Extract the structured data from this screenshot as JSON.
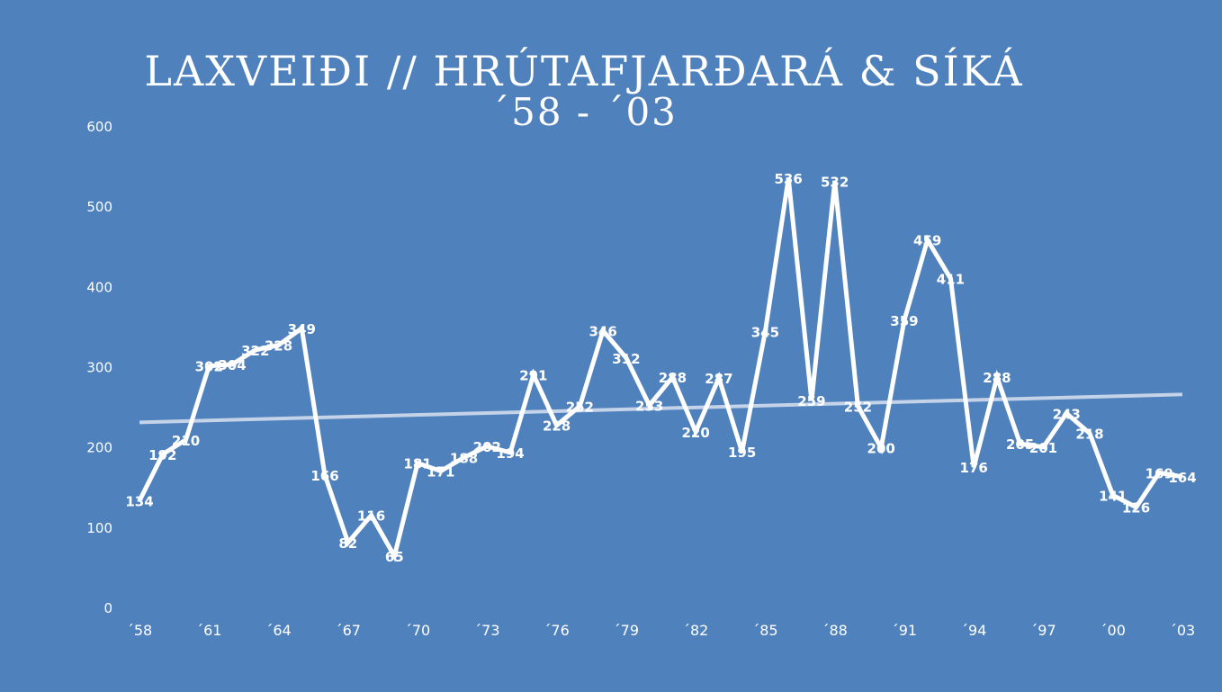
{
  "chart_data": {
    "type": "line",
    "title": "LAXVEIÐI // HRÚTAFJARÐARÁ & SÍKÁ",
    "subtitle": "´58 -  ´03",
    "xlabel": "",
    "ylabel": "",
    "ylim": [
      0,
      600
    ],
    "yticks": [
      0,
      100,
      200,
      300,
      400,
      500,
      600
    ],
    "grid": false,
    "legend": "none",
    "trendline": true,
    "categories": [
      "1958",
      "1959",
      "1960",
      "1961",
      "1962",
      "1963",
      "1964",
      "1965",
      "1966",
      "1967",
      "1968",
      "1969",
      "1970",
      "1971",
      "1972",
      "1973",
      "1974",
      "1975",
      "1976",
      "1977",
      "1978",
      "1979",
      "1980",
      "1981",
      "1982",
      "1983",
      "1984",
      "1985",
      "1986",
      "1987",
      "1988",
      "1989",
      "1990",
      "1991",
      "1992",
      "1993",
      "1994",
      "1995",
      "1996",
      "1997",
      "1998",
      "1999",
      "2000",
      "2001",
      "2002",
      "2003"
    ],
    "xtick_labels": [
      "´58",
      "´61",
      "´64",
      "´67",
      "´70",
      "´73",
      "´76",
      "´79",
      "´82",
      "´85",
      "´88",
      "´91",
      "´94",
      "´97",
      "´00",
      "´03"
    ],
    "series": [
      {
        "values": [
          134,
          192,
          210,
          302,
          304,
          322,
          328,
          349,
          166,
          82,
          116,
          65,
          181,
          171,
          188,
          202,
          194,
          291,
          228,
          252,
          346,
          312,
          253,
          288,
          220,
          287,
          195,
          345,
          536,
          259,
          532,
          252,
          200,
          359,
          459,
          411,
          176,
          288,
          205,
          201,
          243,
          218,
          141,
          126,
          169,
          164
        ]
      }
    ],
    "colors": {
      "background": "#4f81bd",
      "line": "#ffffff",
      "trend": "#c5d3e8",
      "drop_lines": "#ffffff"
    }
  }
}
